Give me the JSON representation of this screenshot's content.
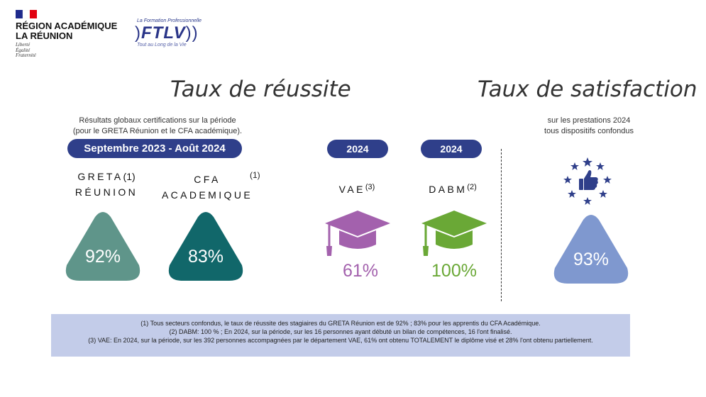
{
  "header": {
    "region_line1": "RÉGION ACADÉMIQUE",
    "region_line2": "LA RÉUNION",
    "devise_1": "Liberté",
    "devise_2": "Égalité",
    "devise_3": "Fraternité",
    "ftlv_tagline": "La Formation Professionnelle",
    "ftlv_logo": "FTLV",
    "ftlv_subtitle": "Tout au Long de la Vie"
  },
  "reussite": {
    "title": "Taux de réussite",
    "note_line1": "Résultats globaux certifications sur la période",
    "note_line2": "(pour le GRETA Réunion et le CFA académique).",
    "period": "Septembre 2023 - Août 2024",
    "greta_label_1": "GRETA",
    "greta_ref": "(1)",
    "greta_label_2": "RÉUNION",
    "greta_value": "92%",
    "cfa_label_1": "CFA",
    "cfa_ref": "(1)",
    "cfa_label_2": "ACADEMIQUE",
    "cfa_value": "83%",
    "vae_year": "2024",
    "vae_label": "VAE",
    "vae_ref": "(3)",
    "vae_value": "61%",
    "dabm_year": "2024",
    "dabm_label": "DABM",
    "dabm_ref": "(2)",
    "dabm_value": "100%"
  },
  "satisfaction": {
    "title": "Taux de satisfaction",
    "note_line1": "sur les prestations 2024",
    "note_line2": "tous dispositifs confondus",
    "value": "93%"
  },
  "footer": {
    "line1": "(1) Tous secteurs confondus, le taux de réussite des stagiaires du GRETA Réunion est de 92% ; 83% pour les apprentis du CFA Académique.",
    "line2": "(2) DABM: 100 % ; En 2024, sur la période, sur les 16 personnes ayant débuté un bilan de compétences, 16 l'ont finalisé.",
    "line3": "(3) VAE: En 2024, sur la période, sur les 392 personnes accompagnées par le département VAE, 61% ont obtenu TOTALEMENT le diplôme visé et 28% l'ont obtenu partiellement."
  },
  "colors": {
    "greta": "#5f958a",
    "cfa": "#11676a",
    "vae": "#a361ad",
    "dabm": "#6aa836",
    "satisfaction": "#7f98cf",
    "pill": "#2f3f8a",
    "footer_bg": "#c3cce9"
  },
  "icons": [
    "graduation-cap-icon",
    "thumbs-up-stars-icon",
    "french-flag-icon"
  ]
}
